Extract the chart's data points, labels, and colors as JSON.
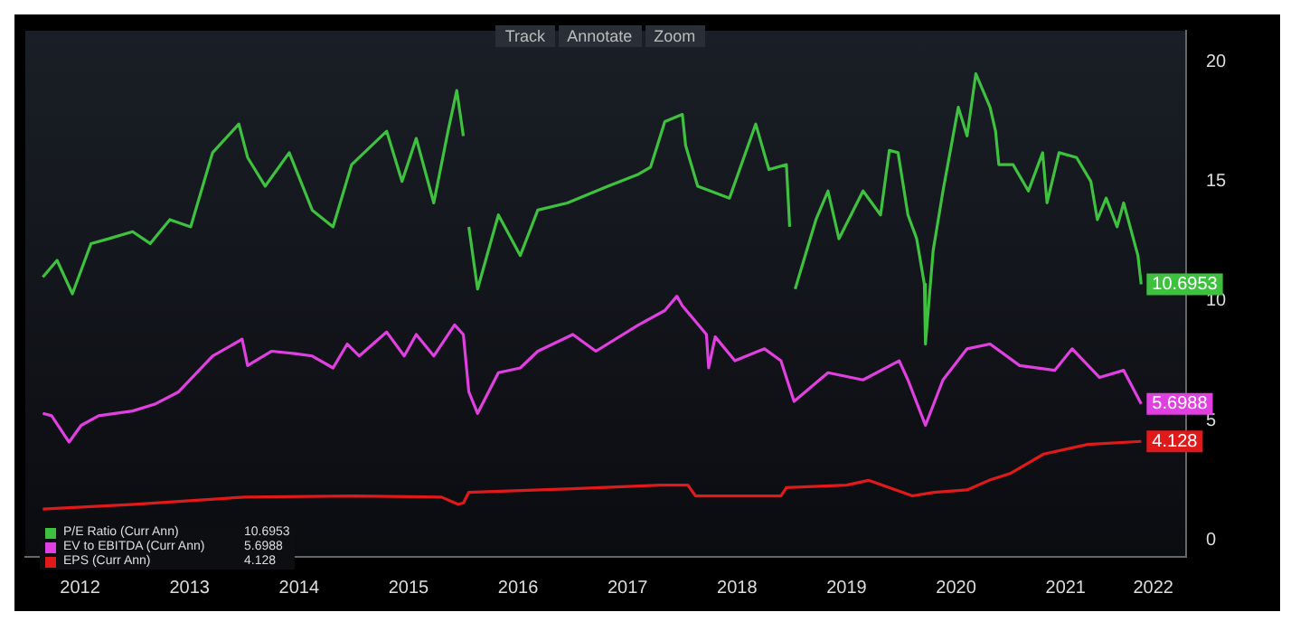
{
  "chart_data": {
    "type": "line",
    "annotations": [
      "Track",
      "Annotate",
      "Zoom"
    ],
    "xlim": [
      2012.0,
      2022.6
    ],
    "xticks": [
      {
        "value": 2012.5,
        "label": "2012"
      },
      {
        "value": 2013.5,
        "label": "2013"
      },
      {
        "value": 2014.5,
        "label": "2014"
      },
      {
        "value": 2015.5,
        "label": "2015"
      },
      {
        "value": 2016.5,
        "label": "2016"
      },
      {
        "value": 2017.5,
        "label": "2017"
      },
      {
        "value": 2018.5,
        "label": "2018"
      },
      {
        "value": 2019.5,
        "label": "2019"
      },
      {
        "value": 2020.5,
        "label": "2020"
      },
      {
        "value": 2021.5,
        "label": "2021"
      },
      {
        "value": 2022.3,
        "label": "2022"
      }
    ],
    "ylim": [
      -0.7,
      21.3
    ],
    "yticks": [
      0,
      5,
      10,
      15,
      20
    ],
    "grid": false,
    "legend": "bottom left",
    "marker": "none",
    "line_style": "solid",
    "series": [
      {
        "name": "P/E Ratio (Curr Ann)",
        "color": "#3ec13e",
        "x": [
          2012.16,
          2012.29,
          2012.43,
          2012.6,
          2012.76,
          2012.98,
          2013.14,
          2013.32,
          2013.51,
          2013.71,
          2013.95,
          2014.03,
          2014.19,
          2014.41,
          2014.62,
          2014.81,
          2014.98,
          2015.3,
          2015.44,
          2015.57,
          2015.73,
          2015.86,
          2015.94,
          2016.0,
          2016.02,
          2016.05,
          2016.13,
          2016.32,
          2016.52,
          2016.68,
          2016.95,
          2017.32,
          2017.6,
          2017.71,
          2017.84,
          2018.0,
          2018.03,
          2018.14,
          2018.43,
          2018.67,
          2018.79,
          2018.95,
          2018.98,
          2019.0,
          2019.03,
          2019.22,
          2019.33,
          2019.43,
          2019.65,
          2019.81,
          2019.89,
          2019.97,
          2020.06,
          2020.14,
          2020.21,
          2020.22,
          2020.29,
          2020.38,
          2020.52,
          2020.6,
          2020.68,
          2020.81,
          2020.86,
          2020.89,
          2021.02,
          2021.16,
          2021.29,
          2021.33,
          2021.44,
          2021.6,
          2021.73,
          2021.79,
          2021.87,
          2021.97,
          2022.03,
          2022.16,
          2022.19
        ],
        "values": [
          11.0,
          11.7,
          10.3,
          12.4,
          12.6,
          12.9,
          12.4,
          13.4,
          13.1,
          16.2,
          17.4,
          16.0,
          14.8,
          16.2,
          13.8,
          13.1,
          15.7,
          17.1,
          15.0,
          16.8,
          14.1,
          17.1,
          18.8,
          16.9,
          null,
          13.1,
          10.5,
          13.6,
          11.9,
          13.8,
          14.1,
          14.8,
          15.3,
          15.6,
          17.5,
          17.8,
          16.5,
          14.8,
          14.3,
          17.4,
          15.5,
          15.7,
          13.1,
          null,
          10.5,
          13.4,
          14.6,
          12.6,
          14.6,
          13.6,
          16.3,
          16.2,
          13.6,
          12.6,
          10.7,
          8.2,
          12.1,
          14.6,
          18.1,
          16.9,
          19.5,
          18.1,
          17.1,
          15.7,
          15.7,
          14.6,
          16.2,
          14.1,
          16.2,
          16.0,
          15.0,
          13.4,
          14.3,
          13.1,
          14.1,
          11.9,
          10.6953
        ],
        "value_labels": [
          null,
          null,
          null,
          null,
          null,
          null,
          null,
          null,
          null,
          null,
          null,
          null,
          null,
          null,
          null,
          null,
          null,
          null,
          null,
          null,
          null,
          null,
          null,
          null,
          null,
          null,
          null,
          null,
          null,
          null,
          null,
          null,
          null,
          null,
          null,
          null,
          null,
          null,
          null,
          null,
          null,
          null,
          null,
          null,
          null,
          null,
          null,
          null,
          null,
          null,
          null,
          null,
          null,
          null,
          null,
          null,
          null,
          null,
          null,
          null,
          null,
          null,
          null,
          null,
          null,
          null,
          null,
          null,
          null,
          null,
          null,
          null,
          null,
          null,
          null,
          null,
          "10.6953"
        ]
      },
      {
        "name": "EV to EBITDA (Curr Ann)",
        "color": "#e040e0",
        "x": [
          2012.16,
          2012.24,
          2012.4,
          2012.51,
          2012.67,
          2012.98,
          2013.19,
          2013.4,
          2013.71,
          2013.98,
          2014.03,
          2014.25,
          2014.46,
          2014.62,
          2014.81,
          2014.94,
          2015.05,
          2015.3,
          2015.46,
          2015.57,
          2015.73,
          2015.92,
          2016.0,
          2016.05,
          2016.13,
          2016.32,
          2016.52,
          2016.68,
          2017.0,
          2017.21,
          2017.6,
          2017.84,
          2017.95,
          2018.0,
          2018.22,
          2018.24,
          2018.3,
          2018.48,
          2018.75,
          2018.9,
          2019.02,
          2019.33,
          2019.65,
          2019.98,
          2020.06,
          2020.22,
          2020.38,
          2020.6,
          2020.81,
          2021.08,
          2021.4,
          2021.56,
          2021.81,
          2022.03,
          2022.19
        ],
        "values": [
          5.3,
          5.2,
          4.1,
          4.8,
          5.2,
          5.4,
          5.7,
          6.2,
          7.7,
          8.4,
          7.3,
          7.9,
          7.8,
          7.7,
          7.2,
          8.2,
          7.7,
          8.7,
          7.7,
          8.6,
          7.7,
          9.0,
          8.6,
          6.2,
          5.3,
          7.0,
          7.2,
          7.9,
          8.6,
          7.9,
          9.0,
          9.6,
          10.2,
          9.8,
          8.6,
          7.2,
          8.5,
          7.5,
          8.0,
          7.5,
          5.8,
          7.0,
          6.7,
          7.5,
          6.7,
          4.8,
          6.7,
          8.0,
          8.2,
          7.3,
          7.1,
          8.0,
          6.8,
          7.1,
          5.6988
        ],
        "value_labels": [
          null,
          null,
          null,
          null,
          null,
          null,
          null,
          null,
          null,
          null,
          null,
          null,
          null,
          null,
          null,
          null,
          null,
          null,
          null,
          null,
          null,
          null,
          null,
          null,
          null,
          null,
          null,
          null,
          null,
          null,
          null,
          null,
          null,
          null,
          null,
          null,
          null,
          null,
          null,
          null,
          null,
          null,
          null,
          null,
          null,
          null,
          null,
          null,
          null,
          null,
          null,
          null,
          null,
          null,
          "5.6988"
        ]
      },
      {
        "name": "EPS (Curr Ann)",
        "color": "#e01a1a",
        "x": [
          2012.16,
          2013.0,
          2013.5,
          2014.0,
          2015.0,
          2015.8,
          2015.95,
          2016.0,
          2016.05,
          2017.0,
          2017.8,
          2018.05,
          2018.12,
          2018.9,
          2018.95,
          2019.5,
          2019.7,
          2019.95,
          2020.1,
          2020.3,
          2020.6,
          2020.8,
          2021.0,
          2021.3,
          2021.7,
          2022.19
        ],
        "values": [
          1.3,
          1.5,
          1.65,
          1.8,
          1.85,
          1.8,
          1.5,
          1.55,
          2.0,
          2.15,
          2.3,
          2.3,
          1.85,
          1.85,
          2.2,
          2.3,
          2.5,
          2.1,
          1.85,
          2.0,
          2.1,
          2.5,
          2.8,
          3.6,
          4.0,
          4.128
        ],
        "value_labels": [
          null,
          null,
          null,
          null,
          null,
          null,
          null,
          null,
          null,
          null,
          null,
          null,
          null,
          null,
          null,
          null,
          null,
          null,
          null,
          null,
          null,
          null,
          null,
          null,
          null,
          "4.128"
        ]
      }
    ]
  }
}
